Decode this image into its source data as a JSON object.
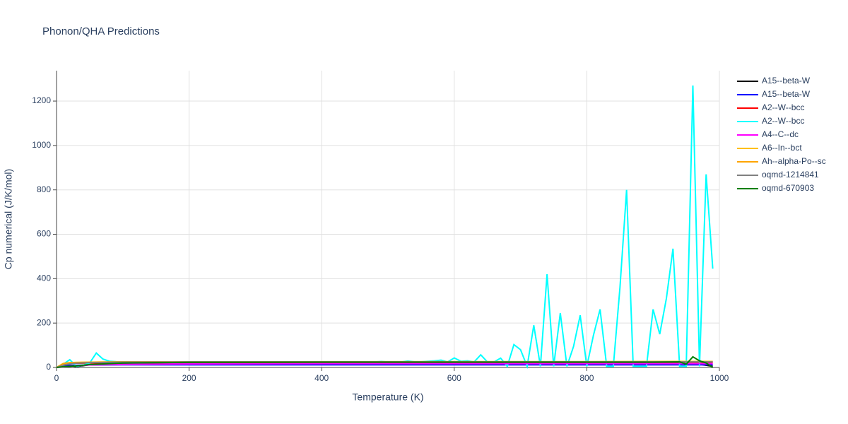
{
  "chart_data": {
    "type": "line",
    "title": "Phonon/QHA Predictions",
    "x_label": "Temperature (K)",
    "y_label": "Cp numerical (J/K/mol)",
    "xlim": [
      0,
      1000
    ],
    "ylim": [
      0,
      1337
    ],
    "xticks": [
      0,
      200,
      400,
      600,
      800,
      1000
    ],
    "yticks": [
      0,
      200,
      400,
      600,
      800,
      1000,
      1200
    ],
    "grid": true,
    "legend": "right",
    "series": [
      {
        "name": "A15--beta-W",
        "color": "#000000",
        "x": [
          0,
          10,
          20,
          30,
          50,
          100,
          200,
          400,
          600,
          800,
          900,
          950,
          990
        ],
        "values": [
          0,
          5,
          8,
          4,
          12,
          19,
          22,
          23,
          23,
          24,
          24,
          24,
          5
        ]
      },
      {
        "name": "A15--beta-W",
        "color": "#0000ff",
        "x": [
          0,
          10,
          20,
          30,
          50,
          100,
          200,
          400,
          600,
          800,
          900,
          950,
          990
        ],
        "values": [
          0,
          6,
          9,
          10,
          11,
          12,
          12,
          12,
          12,
          12,
          12,
          12,
          12
        ]
      },
      {
        "name": "A2--W--bcc",
        "color": "#ff0000",
        "x": [
          0,
          10,
          20,
          30,
          50,
          100,
          200,
          400,
          600,
          800,
          900,
          950,
          990
        ],
        "values": [
          0,
          12,
          17,
          19,
          20,
          21,
          21,
          21,
          21,
          21,
          21,
          21,
          21
        ]
      },
      {
        "name": "A2--W--bcc",
        "color": "#00ffff",
        "x": [
          0,
          10,
          20,
          30,
          40,
          50,
          60,
          70,
          80,
          90,
          100,
          110,
          120,
          130,
          140,
          150,
          160,
          170,
          180,
          190,
          200,
          210,
          220,
          230,
          240,
          250,
          260,
          270,
          280,
          290,
          300,
          310,
          320,
          330,
          340,
          350,
          360,
          370,
          380,
          390,
          400,
          410,
          420,
          430,
          440,
          450,
          460,
          470,
          480,
          490,
          500,
          510,
          520,
          530,
          540,
          550,
          560,
          570,
          580,
          590,
          600,
          610,
          620,
          630,
          640,
          650,
          660,
          670,
          680,
          690,
          700,
          710,
          720,
          730,
          740,
          750,
          760,
          770,
          780,
          790,
          800,
          810,
          820,
          830,
          840,
          850,
          860,
          870,
          880,
          890,
          900,
          910,
          920,
          930,
          940,
          950,
          960,
          970,
          980,
          990
        ],
        "values": [
          0,
          15,
          35,
          5,
          10,
          20,
          65,
          38,
          28,
          26,
          25,
          25,
          25,
          24,
          24,
          24,
          25,
          25,
          25,
          25,
          25,
          25,
          25,
          25,
          25,
          25,
          25,
          25,
          25,
          25,
          25,
          25,
          25,
          25,
          25,
          25,
          25,
          25,
          25,
          25,
          25,
          26,
          25,
          25,
          25,
          25,
          25,
          25,
          25,
          27,
          25,
          25,
          25,
          29,
          26,
          26,
          28,
          30,
          33,
          25,
          43,
          28,
          30,
          25,
          57,
          25,
          25,
          42,
          5,
          103,
          80,
          5,
          190,
          5,
          420,
          5,
          245,
          5,
          95,
          235,
          5,
          145,
          262,
          5,
          5,
          360,
          800,
          5,
          5,
          5,
          262,
          150,
          310,
          535,
          5,
          5,
          1270,
          5,
          870,
          445
        ]
      },
      {
        "name": "A4--C--dc",
        "color": "#ff00ff",
        "x": [
          0,
          10,
          20,
          30,
          50,
          100,
          200,
          400,
          600,
          800,
          900,
          950,
          990
        ],
        "values": [
          0,
          2,
          5,
          8,
          11,
          14,
          16,
          17,
          17,
          17,
          17,
          17,
          17
        ]
      },
      {
        "name": "A6--In--bct",
        "color": "#ffbf00",
        "x": [
          0,
          10,
          20,
          30,
          50,
          100,
          200,
          400,
          600,
          800,
          900,
          950,
          990
        ],
        "values": [
          0,
          18,
          22,
          23,
          24,
          25,
          25,
          26,
          26,
          26,
          27,
          27,
          27
        ]
      },
      {
        "name": "Ah--alpha-Po--sc",
        "color": "#ffa500",
        "x": [
          0,
          10,
          20,
          30,
          50,
          100,
          200,
          400,
          600,
          800,
          900,
          950,
          990
        ],
        "values": [
          0,
          17,
          21,
          22,
          24,
          25,
          25,
          25,
          26,
          26,
          26,
          26,
          26
        ]
      },
      {
        "name": "oqmd-1214841",
        "color": "#808080",
        "x": [
          0,
          10,
          20,
          30,
          50,
          100,
          200,
          400,
          600,
          800,
          900,
          950,
          990
        ],
        "values": [
          0,
          10,
          16,
          19,
          22,
          24,
          25,
          25,
          25,
          25,
          25,
          25,
          25
        ]
      },
      {
        "name": "oqmd-670903",
        "color": "#008000",
        "x": [
          0,
          10,
          20,
          30,
          50,
          100,
          200,
          400,
          600,
          800,
          900,
          940,
          950,
          960,
          970,
          980,
          990
        ],
        "values": [
          0,
          3,
          5,
          7,
          13,
          20,
          23,
          24,
          24,
          24,
          24,
          25,
          15,
          48,
          30,
          20,
          0
        ]
      }
    ]
  }
}
